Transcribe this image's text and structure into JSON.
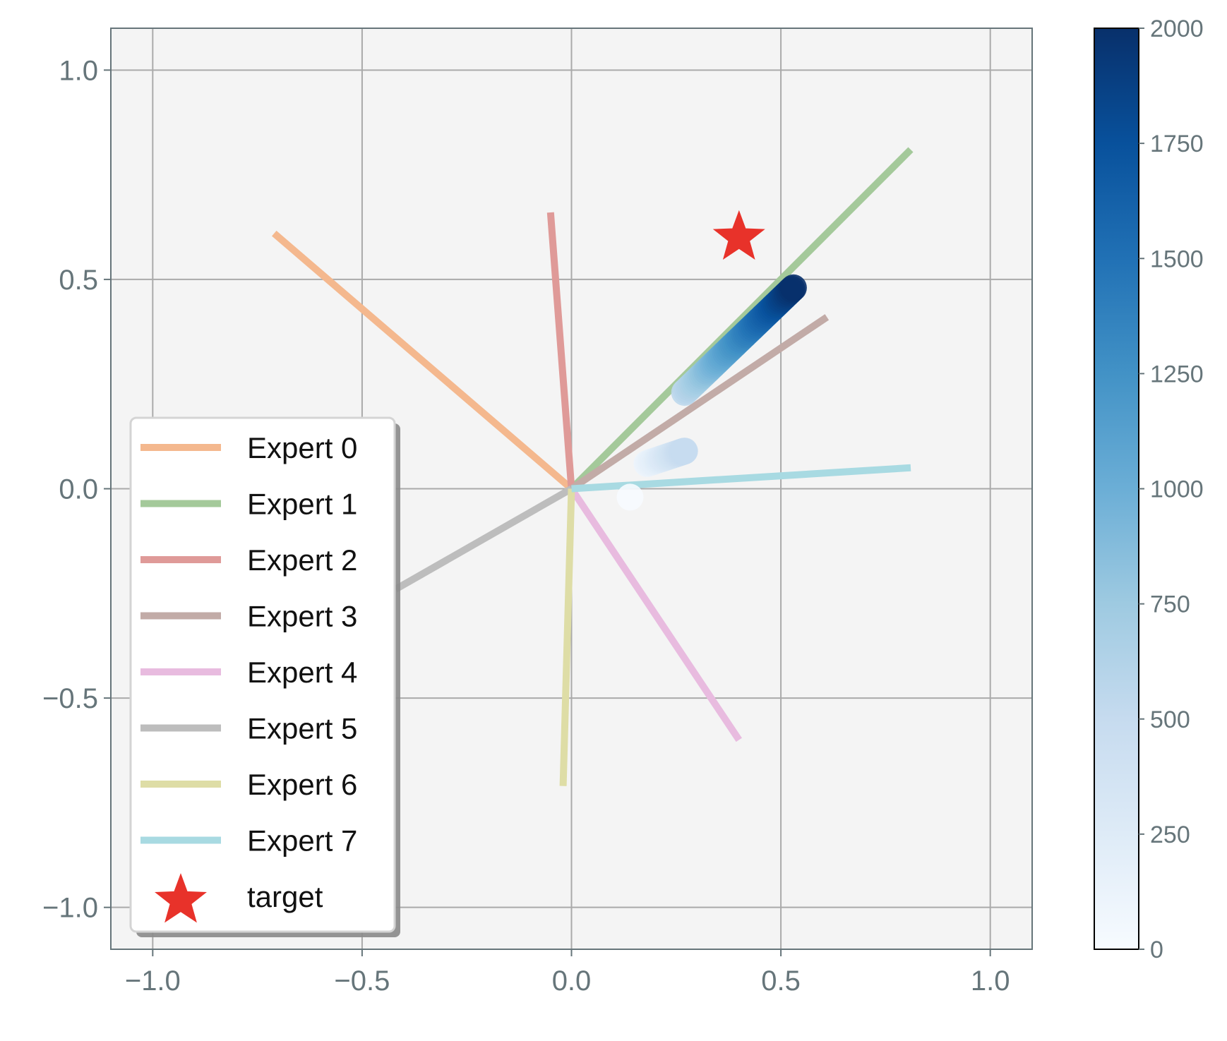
{
  "chart_data": {
    "type": "line",
    "title": "",
    "xlabel": "",
    "ylabel": "",
    "xlim": [
      -1.1,
      1.1
    ],
    "ylim": [
      -1.1,
      1.1
    ],
    "x_ticks": [
      -1.0,
      -0.5,
      0.0,
      0.5,
      1.0
    ],
    "y_ticks": [
      -1.0,
      -0.5,
      0.0,
      0.5,
      1.0
    ],
    "x_tick_labels": [
      "−1.0",
      "−0.5",
      "0.0",
      "0.5",
      "1.0"
    ],
    "y_tick_labels": [
      "−1.0",
      "−0.5",
      "0.0",
      "0.5",
      "1.0"
    ],
    "grid": true,
    "legend_position": "lower-left",
    "series": [
      {
        "name": "Expert 0",
        "color": "#f4b88e",
        "x": [
          0,
          -0.71
        ],
        "y": [
          0,
          0.61
        ]
      },
      {
        "name": "Expert 1",
        "color": "#a4c99a",
        "x": [
          0,
          0.81
        ],
        "y": [
          0,
          0.81
        ]
      },
      {
        "name": "Expert 2",
        "color": "#df9a98",
        "x": [
          0,
          -0.05
        ],
        "y": [
          0,
          0.66
        ]
      },
      {
        "name": "Expert 3",
        "color": "#c2aba7",
        "x": [
          0,
          0.61
        ],
        "y": [
          0,
          0.41
        ]
      },
      {
        "name": "Expert 4",
        "color": "#e8bbdf",
        "x": [
          0,
          0.4
        ],
        "y": [
          0,
          -0.6
        ]
      },
      {
        "name": "Expert 5",
        "color": "#bdbdbd",
        "x": [
          0,
          -0.42
        ],
        "y": [
          0,
          -0.24
        ]
      },
      {
        "name": "Expert 6",
        "color": "#dedda6",
        "x": [
          0,
          -0.02
        ],
        "y": [
          0,
          -0.71
        ]
      },
      {
        "name": "Expert 7",
        "color": "#a8dae2",
        "x": [
          0,
          0.81
        ],
        "y": [
          0,
          0.05
        ]
      }
    ],
    "target": {
      "name": "target",
      "x": 0.4,
      "y": 0.6,
      "color": "#e8322a",
      "marker": "star"
    },
    "trajectory": {
      "colormap": "Blues",
      "steps": [
        0,
        2000
      ],
      "segments": [
        {
          "x": [
            0.14,
            0.14
          ],
          "y": [
            -0.02,
            -0.02
          ],
          "step": [
            0,
            0
          ]
        },
        {
          "x": [
            0.18,
            0.27
          ],
          "y": [
            0.06,
            0.09
          ],
          "step": [
            100,
            500
          ]
        },
        {
          "x": [
            0.27,
            0.53
          ],
          "y": [
            0.23,
            0.48
          ],
          "step": [
            550,
            2000
          ]
        }
      ]
    },
    "colorbar": {
      "range": [
        0,
        2000
      ],
      "ticks": [
        0,
        250,
        500,
        750,
        1000,
        1250,
        1500,
        1750,
        2000
      ],
      "tick_labels": [
        "0",
        "250",
        "500",
        "750",
        "1000",
        "1250",
        "1500",
        "1750",
        "2000"
      ],
      "colors": [
        "#f7fbff",
        "#deebf7",
        "#c6dbef",
        "#9ecae1",
        "#6baed6",
        "#4292c6",
        "#2171b5",
        "#08519c",
        "#08306b"
      ]
    },
    "legend": {
      "entries": [
        "Expert 0",
        "Expert 1",
        "Expert 2",
        "Expert 3",
        "Expert 4",
        "Expert 5",
        "Expert 6",
        "Expert 7",
        "target"
      ]
    }
  }
}
